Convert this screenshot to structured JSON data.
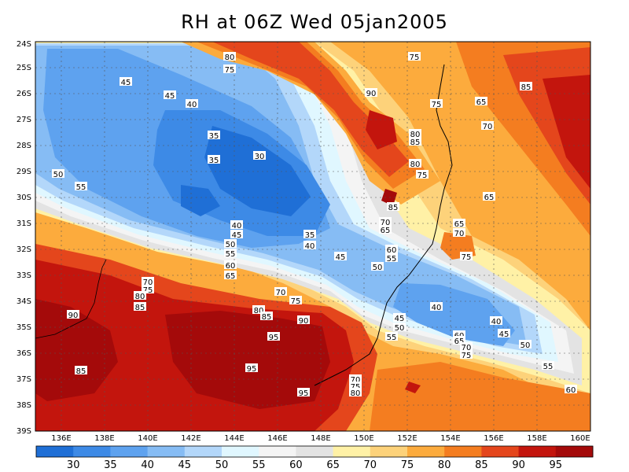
{
  "title": "RH at 06Z Wed 05jan2005",
  "lat_ticks": [
    "24S",
    "25S",
    "26S",
    "27S",
    "28S",
    "29S",
    "30S",
    "31S",
    "32S",
    "33S",
    "34S",
    "35S",
    "36S",
    "37S",
    "38S",
    "39S"
  ],
  "lon_ticks": [
    "136E",
    "138E",
    "140E",
    "142E",
    "144E",
    "146E",
    "148E",
    "150E",
    "152E",
    "154E",
    "156E",
    "158E",
    "160E"
  ],
  "colorbar": {
    "labels": [
      "30",
      "35",
      "40",
      "45",
      "50",
      "55",
      "60",
      "65",
      "70",
      "75",
      "80",
      "85",
      "90",
      "95"
    ],
    "colors": [
      "#1f6fd6",
      "#3d8ae6",
      "#5ea2ef",
      "#86bcf4",
      "#b3d7fa",
      "#e0f7ff",
      "#f4f4f4",
      "#e3e3e3",
      "#fff1a6",
      "#fdd27a",
      "#fcab3d",
      "#f47d20",
      "#e4461c",
      "#c3150d",
      "#a40a0a"
    ]
  },
  "contour_labels": [
    {
      "t": "80"
    },
    {
      "t": "75"
    },
    {
      "t": "75"
    },
    {
      "t": "45"
    },
    {
      "t": "45"
    },
    {
      "t": "40"
    },
    {
      "t": "90"
    },
    {
      "t": "75"
    },
    {
      "t": "65"
    },
    {
      "t": "85"
    },
    {
      "t": "80"
    },
    {
      "t": "85"
    },
    {
      "t": "70"
    },
    {
      "t": "35"
    },
    {
      "t": "30"
    },
    {
      "t": "50"
    },
    {
      "t": "55"
    },
    {
      "t": "80"
    },
    {
      "t": "75"
    },
    {
      "t": "35"
    },
    {
      "t": "85"
    },
    {
      "t": "65"
    },
    {
      "t": "70"
    },
    {
      "t": "65"
    },
    {
      "t": "40"
    },
    {
      "t": "45"
    },
    {
      "t": "65"
    },
    {
      "t": "70"
    },
    {
      "t": "50"
    },
    {
      "t": "35"
    },
    {
      "t": "40"
    },
    {
      "t": "75"
    },
    {
      "t": "55"
    },
    {
      "t": "45"
    },
    {
      "t": "60"
    },
    {
      "t": "55"
    },
    {
      "t": "60"
    },
    {
      "t": "50"
    },
    {
      "t": "65"
    },
    {
      "t": "70"
    },
    {
      "t": "75"
    },
    {
      "t": "70"
    },
    {
      "t": "80"
    },
    {
      "t": "75"
    },
    {
      "t": "85"
    },
    {
      "t": "40"
    },
    {
      "t": "80"
    },
    {
      "t": "85"
    },
    {
      "t": "90"
    },
    {
      "t": "90"
    },
    {
      "t": "45"
    },
    {
      "t": "40"
    },
    {
      "t": "50"
    },
    {
      "t": "45"
    },
    {
      "t": "95"
    },
    {
      "t": "55"
    },
    {
      "t": "60"
    },
    {
      "t": "65"
    },
    {
      "t": "70"
    },
    {
      "t": "75"
    },
    {
      "t": "50"
    },
    {
      "t": "95"
    },
    {
      "t": "55"
    },
    {
      "t": "85"
    },
    {
      "t": "70"
    },
    {
      "t": "75"
    },
    {
      "t": "80"
    },
    {
      "t": "95"
    },
    {
      "t": "60"
    }
  ]
}
